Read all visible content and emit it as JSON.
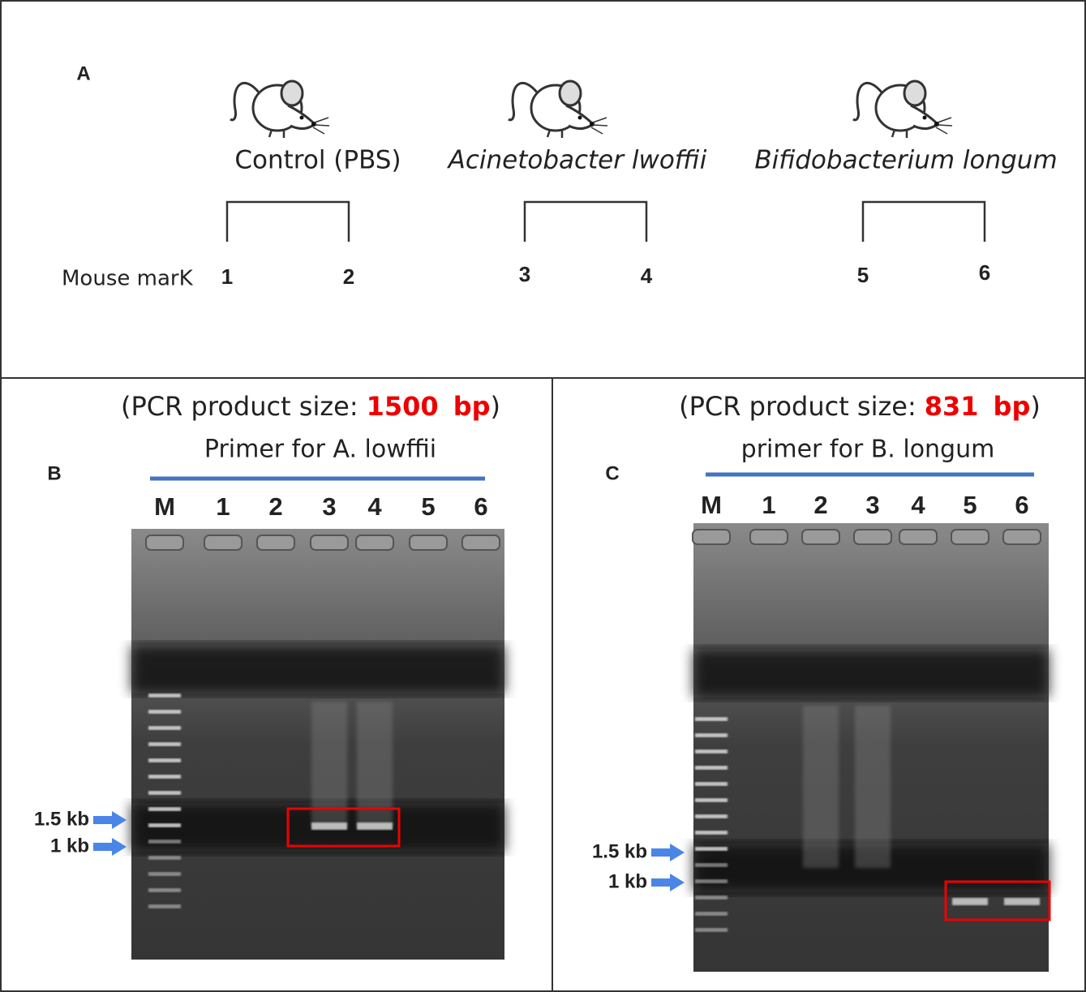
{
  "panel_a": {
    "label": "A",
    "row_label": "Mouse marK",
    "groups": [
      {
        "name": "Control (PBS)",
        "marks": [
          "1",
          "2"
        ]
      },
      {
        "name": "Acinetobacter lwoffii",
        "marks": [
          "3",
          "4"
        ]
      },
      {
        "name": "Bifidobacterium longum",
        "marks": [
          "5",
          "6"
        ]
      }
    ]
  },
  "panel_b": {
    "label": "B",
    "size_prefix": "(PCR product size:",
    "size": "1500",
    "unit": "bp",
    "size_suffix": ")",
    "primer": "Primer for A. lowffii",
    "lanes": [
      "M",
      "1",
      "2",
      "3",
      "4",
      "5",
      "6"
    ],
    "markers": [
      "1.5 kb",
      "1 kb"
    ]
  },
  "panel_c": {
    "label": "C",
    "size_prefix": "(PCR product size:",
    "size": "831",
    "unit": "bp",
    "size_suffix": ")",
    "primer": "primer for B. longum",
    "lanes": [
      "M",
      "1",
      "2",
      "3",
      "4",
      "5",
      "6"
    ],
    "markers": [
      "1.5 kb",
      "1 kb"
    ]
  }
}
